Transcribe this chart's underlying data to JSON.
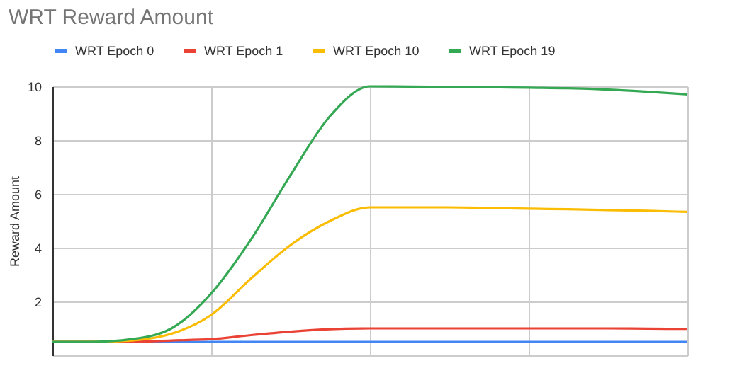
{
  "chart_data": {
    "type": "line",
    "title": "WRT Reward Amount",
    "ylabel": "Reward Amount",
    "categories": [
      null,
      null,
      null,
      null,
      null,
      null,
      null,
      null,
      null,
      null,
      null,
      null,
      null,
      null,
      null,
      null,
      null
    ],
    "series": [
      {
        "name": "WRT Epoch 0",
        "color": "#4285f4",
        "values": [
          0.5,
          0.5,
          0.5,
          0.5,
          0.5,
          0.5,
          0.5,
          0.5,
          0.5,
          0.5,
          0.5,
          0.5,
          0.5,
          0.5,
          0.5,
          0.5,
          0.5
        ]
      },
      {
        "name": "WRT Epoch 1",
        "color": "#ea4335",
        "values": [
          0.5,
          0.5,
          0.5,
          0.55,
          0.6,
          0.75,
          0.88,
          0.97,
          1.0,
          1.0,
          1.0,
          1.0,
          1.0,
          1.0,
          1.0,
          0.99,
          0.98
        ]
      },
      {
        "name": "WRT Epoch 10",
        "color": "#fbbc04",
        "values": [
          0.5,
          0.5,
          0.55,
          0.8,
          1.5,
          2.85,
          4.1,
          5.0,
          5.5,
          5.5,
          5.5,
          5.48,
          5.45,
          5.43,
          5.4,
          5.37,
          5.33
        ]
      },
      {
        "name": "WRT Epoch 19",
        "color": "#34a853",
        "values": [
          0.5,
          0.5,
          0.6,
          1.0,
          2.3,
          4.3,
          6.7,
          8.9,
          10,
          9.99,
          9.98,
          9.97,
          9.95,
          9.93,
          9.88,
          9.8,
          9.7
        ]
      }
    ],
    "ylim": [
      0,
      10
    ],
    "yticks": [
      {
        "value": 0,
        "label": null
      },
      2,
      4,
      6,
      8,
      10
    ],
    "grid": true,
    "legend": "top",
    "marker": "none",
    "line_style": "solid"
  }
}
